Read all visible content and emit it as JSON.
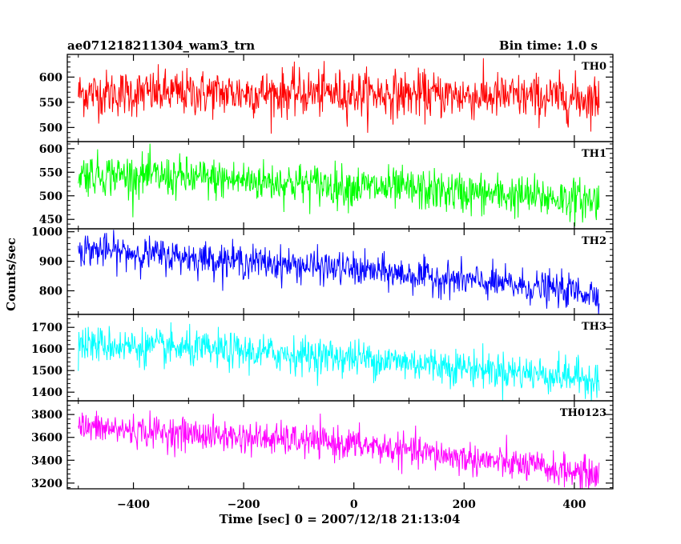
{
  "chart_data": {
    "type": "line",
    "title_left": "ae071218211304_wam3_trn",
    "title_right": "Bin time: 1.0 s",
    "xlabel": "Time [sec] 0 = 2007/12/18 21:13:04",
    "ylabel": "Counts/sec",
    "xlim": [
      -520,
      470
    ],
    "x_data_range": [
      -500,
      445
    ],
    "x_ticks": [
      -400,
      -200,
      0,
      200,
      400
    ],
    "x_tick_labels": [
      "−400",
      "−200",
      "0",
      "200",
      "400"
    ],
    "noise_seed": 12345,
    "panels": [
      {
        "name": "TH0",
        "color": "#ff0000",
        "ylim": [
          472,
          645
        ],
        "y_ticks": [
          500,
          550,
          600
        ],
        "y_tick_labels": [
          "500",
          "550",
          "600"
        ],
        "trend": [
          [
            -500,
            568
          ],
          [
            0,
            568
          ],
          [
            445,
            557
          ]
        ],
        "noise_sd": 23
      },
      {
        "name": "TH1",
        "color": "#00ff00",
        "ylim": [
          430,
          615
        ],
        "y_ticks": [
          450,
          500,
          550,
          600
        ],
        "y_tick_labels": [
          "450",
          "500",
          "550",
          "600"
        ],
        "trend": [
          [
            -500,
            548
          ],
          [
            -150,
            530
          ],
          [
            445,
            490
          ]
        ],
        "noise_sd": 22
      },
      {
        "name": "TH2",
        "color": "#0000ff",
        "ylim": [
          720,
          1010
        ],
        "y_ticks": [
          800,
          900,
          1000
        ],
        "y_tick_labels": [
          "800",
          "900",
          "1000"
        ],
        "trend": [
          [
            -500,
            942
          ],
          [
            0,
            872
          ],
          [
            445,
            790
          ]
        ],
        "noise_sd": 28
      },
      {
        "name": "TH3",
        "color": "#00ffff",
        "ylim": [
          1360,
          1760
        ],
        "y_ticks": [
          1400,
          1500,
          1600,
          1700
        ],
        "y_tick_labels": [
          "1400",
          "1500",
          "1600",
          "1700"
        ],
        "trend": [
          [
            -500,
            1625
          ],
          [
            0,
            1560
          ],
          [
            445,
            1460
          ]
        ],
        "noise_sd": 42
      },
      {
        "name": "TH0123",
        "color": "#ff00ff",
        "ylim": [
          3150,
          3920
        ],
        "y_ticks": [
          3200,
          3400,
          3600,
          3800
        ],
        "y_tick_labels": [
          "3200",
          "3400",
          "3600",
          "3800"
        ],
        "trend": [
          [
            -500,
            3690
          ],
          [
            0,
            3540
          ],
          [
            445,
            3270
          ]
        ],
        "noise_sd": 70
      }
    ]
  }
}
